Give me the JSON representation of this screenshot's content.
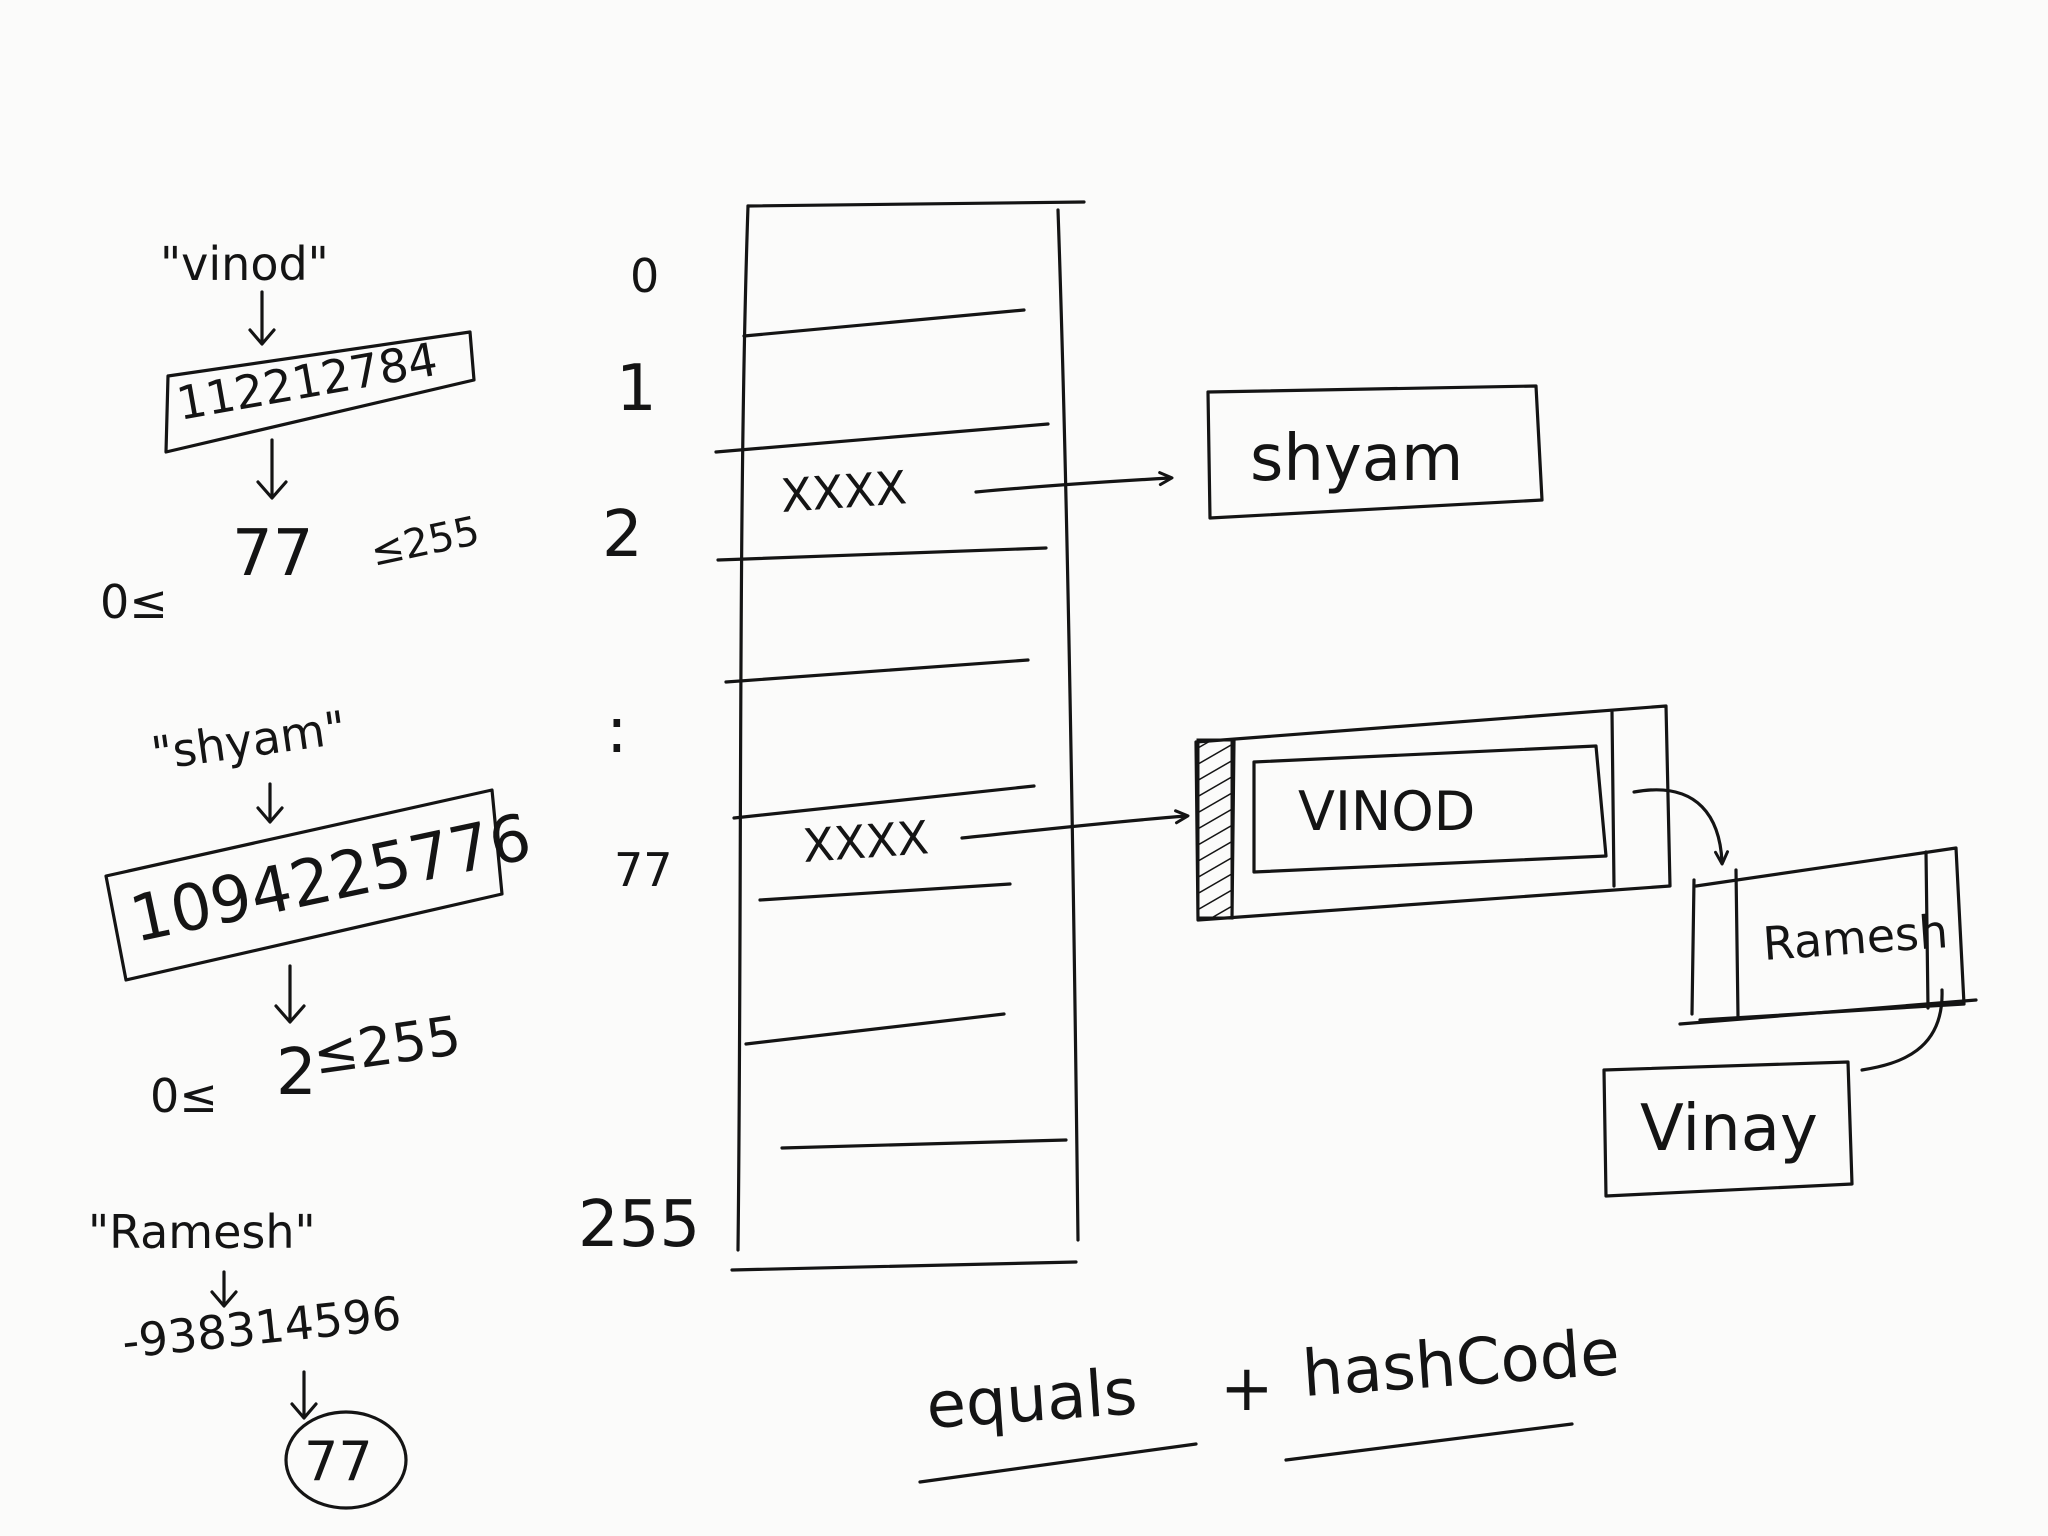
{
  "hashing_steps": [
    {
      "input": "\"vinod\"",
      "hash": "112212784",
      "range": {
        "low": "0≤",
        "index": "77",
        "high": "≤255"
      }
    },
    {
      "input": "\"shyam\"",
      "hash": "1094225776",
      "range": {
        "low": "0≤",
        "index": "2",
        "high": "≤255"
      }
    },
    {
      "input": "\"Ramesh\"",
      "hash": "-938314596",
      "index": "77"
    }
  ],
  "bucket_indices": {
    "i0": "0",
    "i1": "1",
    "i2": "2",
    "dots": ":",
    "i77": "77",
    "i255": "255"
  },
  "bucket_entries": {
    "row2": "XXXX",
    "row77": "XXXX"
  },
  "nodes": {
    "shyam": "shyam",
    "vinod": "VINOD",
    "ramesh": "Ramesh",
    "vinay": "Vinay"
  },
  "footer": {
    "left": "equals",
    "plus": "+",
    "right": "hashCode"
  }
}
